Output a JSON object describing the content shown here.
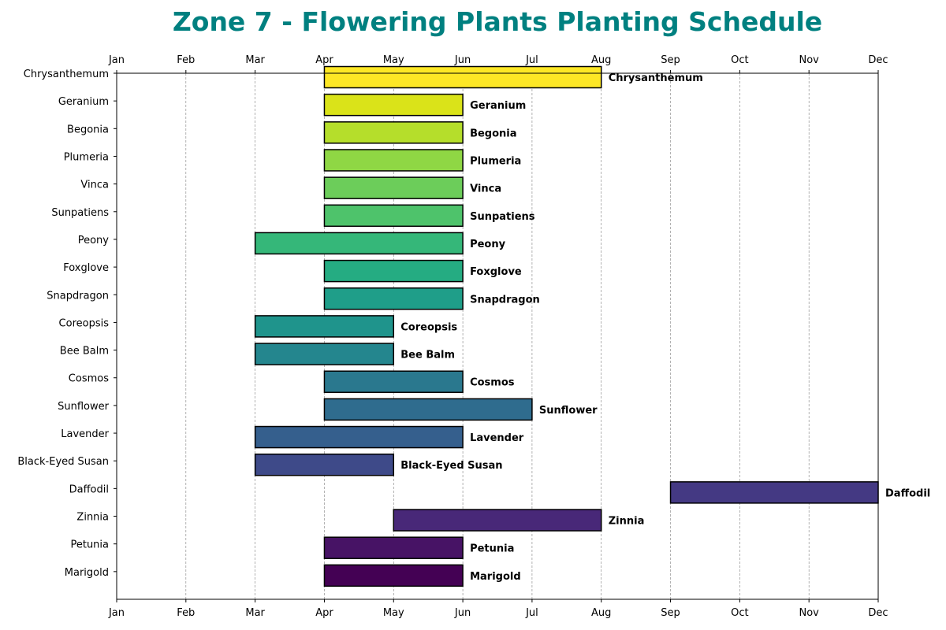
{
  "chart_data": {
    "type": "bar",
    "orientation": "horizontal",
    "title": "Zone 7 - Flowering Plants Planting Schedule",
    "title_color": "#008080",
    "xlabel": "",
    "ylabel": "",
    "x_tick_labels": [
      "Jan",
      "Feb",
      "Mar",
      "Apr",
      "May",
      "Jun",
      "Jul",
      "Aug",
      "Sep",
      "Oct",
      "Nov",
      "Dec"
    ],
    "x_ticks_top_and_bottom": true,
    "xlim": [
      "Jan",
      "Dec"
    ],
    "grid": "vertical dashed",
    "bar_labels": "right of bar end",
    "categories": [
      "Chrysanthemum",
      "Geranium",
      "Begonia",
      "Plumeria",
      "Vinca",
      "Sunpatiens",
      "Peony",
      "Foxglove",
      "Snapdragon",
      "Coreopsis",
      "Bee Balm",
      "Cosmos",
      "Sunflower",
      "Lavender",
      "Black-Eyed Susan",
      "Daffodil",
      "Zinnia",
      "Petunia",
      "Marigold"
    ],
    "start": [
      "Apr",
      "Apr",
      "Apr",
      "Apr",
      "Apr",
      "Apr",
      "Mar",
      "Apr",
      "Apr",
      "Mar",
      "Mar",
      "Apr",
      "Apr",
      "Mar",
      "Mar",
      "Sep",
      "May",
      "Apr",
      "Apr"
    ],
    "end": [
      "Aug",
      "Jun",
      "Jun",
      "Jun",
      "Jun",
      "Jun",
      "Jun",
      "Jun",
      "Jun",
      "May",
      "May",
      "Jun",
      "Jul",
      "Jun",
      "May",
      "Dec",
      "Aug",
      "Jun",
      "Jun"
    ],
    "colors": [
      "#fde725",
      "#dae319",
      "#b5de2b",
      "#8fd744",
      "#6ccd5a",
      "#4ec36b",
      "#35b779",
      "#25ac82",
      "#1f9e89",
      "#1f948c",
      "#24868e",
      "#2a788e",
      "#2f6c8e",
      "#355f8d",
      "#3e4a89",
      "#443983",
      "#482878",
      "#471365",
      "#440154"
    ]
  }
}
